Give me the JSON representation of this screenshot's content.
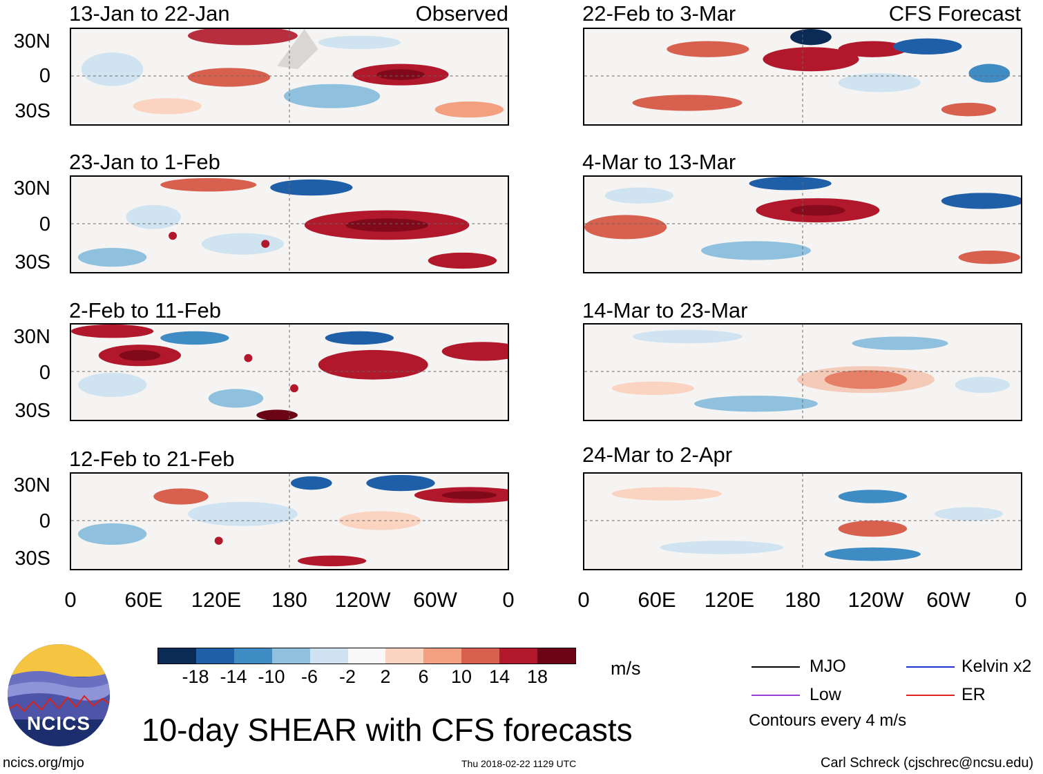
{
  "figure": {
    "title": "10-day SHEAR with CFS forecasts",
    "units": "m/s",
    "website": "ncics.org/mjo",
    "timestamp": "Thu 2018-02-22 1129 UTC",
    "author": "Carl Schreck (cjschrec@ncsu.edu)",
    "logo_text": "NCICS"
  },
  "section_tags": {
    "observed": "Observed",
    "forecast": "CFS Forecast"
  },
  "panels": [
    {
      "title": "13-Jan to 22-Jan",
      "column": "observed"
    },
    {
      "title": "23-Jan to 1-Feb",
      "column": "observed"
    },
    {
      "title": "2-Feb to 11-Feb",
      "column": "observed"
    },
    {
      "title": "12-Feb to 21-Feb",
      "column": "observed"
    },
    {
      "title": "22-Feb to 3-Mar",
      "column": "forecast"
    },
    {
      "title": "4-Mar to 13-Mar",
      "column": "forecast"
    },
    {
      "title": "14-Mar to 23-Mar",
      "column": "forecast"
    },
    {
      "title": "24-Mar to 2-Apr",
      "column": "forecast"
    }
  ],
  "y_axis_labels": [
    "30N",
    "0",
    "30S"
  ],
  "x_axis_labels": [
    "0",
    "60E",
    "120E",
    "180",
    "120W",
    "60W",
    "0"
  ],
  "colorbar": {
    "labels": [
      "-18",
      "-14",
      "-10",
      "-6",
      "-2",
      "2",
      "6",
      "10",
      "14",
      "18"
    ],
    "colors": [
      "#0b2a55",
      "#1f5fa8",
      "#3f8bc4",
      "#8fc1de",
      "#cfe4f0",
      "#f9f9f9",
      "#fbd3c1",
      "#f2a07f",
      "#d8604f",
      "#b2182b",
      "#6b0414"
    ]
  },
  "legend": {
    "items": [
      {
        "label": "MJO",
        "color": "#000000"
      },
      {
        "label": "Kelvin x2",
        "color": "#1a2fd6"
      },
      {
        "label": "Low",
        "color": "#9a3fd6"
      },
      {
        "label": "ER",
        "color": "#e0231c"
      }
    ],
    "note": "Contours every 4 m/s"
  }
}
